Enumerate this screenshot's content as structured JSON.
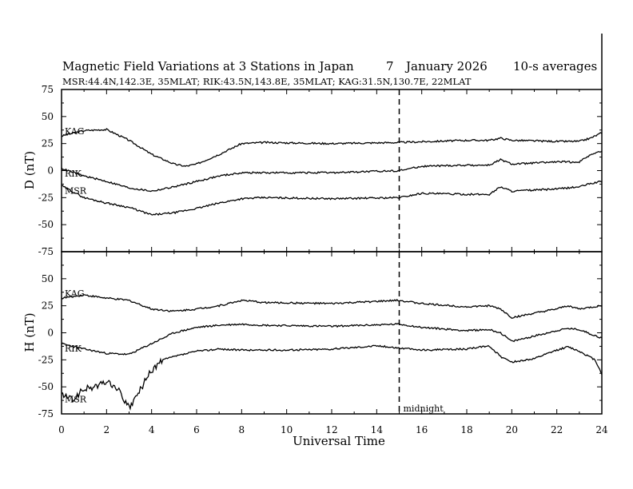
{
  "chart_data": {
    "type": "line",
    "title": "Magnetic Field Variations at 3 Stations in Japan",
    "day": "7",
    "month_year": "January  2026",
    "averaging": "10-s averages",
    "stations_line": "MSR:44.4N,142.3E, 35MLAT;  RIK:43.5N,143.8E, 35MLAT;  KAG:31.5N,130.7E, 22MLAT",
    "xlabel": "Universal Time",
    "xlim": [
      0,
      24
    ],
    "x_ticks": [
      "0",
      "2",
      "4",
      "6",
      "8",
      "10",
      "12",
      "14",
      "16",
      "18",
      "20",
      "22",
      "24"
    ],
    "midnight_label": "midnight",
    "midnight_ut": 15,
    "panels": [
      {
        "ylabel": "D (nT)",
        "ylim": [
          -75,
          75
        ],
        "y_ticks": [
          "75",
          "50",
          "25",
          "0",
          "-25",
          "-50",
          "-75"
        ],
        "series": [
          {
            "name": "KAG",
            "points": [
              [
                0,
                32
              ],
              [
                1,
                37
              ],
              [
                2,
                38
              ],
              [
                3,
                28
              ],
              [
                4,
                15
              ],
              [
                5,
                6
              ],
              [
                5.5,
                4
              ],
              [
                6,
                6
              ],
              [
                7,
                15
              ],
              [
                8,
                25
              ],
              [
                9,
                26
              ],
              [
                12,
                25
              ],
              [
                15,
                26
              ],
              [
                18,
                28
              ],
              [
                19,
                28
              ],
              [
                19.5,
                30
              ],
              [
                20,
                28
              ],
              [
                22,
                27
              ],
              [
                23,
                27
              ],
              [
                23.5,
                30
              ],
              [
                24,
                35
              ]
            ]
          },
          {
            "name": "RIK",
            "points": [
              [
                0,
                2
              ],
              [
                1,
                -5
              ],
              [
                2,
                -10
              ],
              [
                3,
                -16
              ],
              [
                4,
                -19
              ],
              [
                5,
                -15
              ],
              [
                6,
                -10
              ],
              [
                7,
                -5
              ],
              [
                8,
                -2
              ],
              [
                9,
                -2
              ],
              [
                12,
                -2
              ],
              [
                15,
                0
              ],
              [
                16,
                4
              ],
              [
                18,
                5
              ],
              [
                19,
                5
              ],
              [
                19.5,
                10
              ],
              [
                20,
                6
              ],
              [
                22,
                8
              ],
              [
                23,
                8
              ],
              [
                23.5,
                15
              ],
              [
                24,
                18
              ]
            ]
          },
          {
            "name": "MSR",
            "points": [
              [
                0,
                -14
              ],
              [
                1,
                -25
              ],
              [
                2,
                -30
              ],
              [
                3,
                -34
              ],
              [
                4,
                -41
              ],
              [
                5,
                -39
              ],
              [
                6,
                -35
              ],
              [
                7,
                -30
              ],
              [
                8,
                -26
              ],
              [
                9,
                -25
              ],
              [
                12,
                -26
              ],
              [
                15,
                -25
              ],
              [
                16,
                -21
              ],
              [
                18,
                -22
              ],
              [
                19,
                -22
              ],
              [
                19.5,
                -15
              ],
              [
                20,
                -19
              ],
              [
                22,
                -17
              ],
              [
                23,
                -15
              ],
              [
                23.5,
                -12
              ],
              [
                24,
                -10
              ]
            ]
          }
        ]
      },
      {
        "ylabel": "H (nT)",
        "ylim": [
          -75,
          75
        ],
        "y_ticks": [
          "75",
          "50",
          "25",
          "0",
          "-25",
          "-50",
          "-75"
        ],
        "series": [
          {
            "name": "KAG",
            "points": [
              [
                0,
                32
              ],
              [
                1,
                35
              ],
              [
                2,
                32
              ],
              [
                3,
                30
              ],
              [
                4,
                22
              ],
              [
                5,
                20
              ],
              [
                6,
                22
              ],
              [
                7,
                25
              ],
              [
                8,
                30
              ],
              [
                9,
                28
              ],
              [
                12,
                27
              ],
              [
                15,
                30
              ],
              [
                16,
                27
              ],
              [
                18,
                24
              ],
              [
                19,
                25
              ],
              [
                19.5,
                22
              ],
              [
                20,
                14
              ],
              [
                21,
                18
              ],
              [
                22,
                22
              ],
              [
                22.5,
                25
              ],
              [
                23,
                22
              ],
              [
                24,
                25
              ]
            ]
          },
          {
            "name": "RIK",
            "points": [
              [
                0,
                -10
              ],
              [
                1,
                -15
              ],
              [
                2,
                -19
              ],
              [
                3,
                -20
              ],
              [
                4,
                -10
              ],
              [
                5,
                0
              ],
              [
                6,
                5
              ],
              [
                7,
                7
              ],
              [
                8,
                8
              ],
              [
                9,
                7
              ],
              [
                12,
                6
              ],
              [
                15,
                8
              ],
              [
                16,
                5
              ],
              [
                18,
                2
              ],
              [
                19,
                3
              ],
              [
                19.5,
                0
              ],
              [
                20,
                -8
              ],
              [
                21,
                -3
              ],
              [
                22,
                2
              ],
              [
                22.5,
                4
              ],
              [
                23,
                3
              ],
              [
                24,
                -5
              ]
            ]
          },
          {
            "name": "MSR",
            "points": [
              [
                0,
                -57
              ],
              [
                0.5,
                -62
              ],
              [
                1,
                -52
              ],
              [
                1.5,
                -50
              ],
              [
                2,
                -45
              ],
              [
                2.5,
                -52
              ],
              [
                3,
                -70
              ],
              [
                3.3,
                -60
              ],
              [
                3.7,
                -45
              ],
              [
                4,
                -35
              ],
              [
                4.5,
                -25
              ],
              [
                5,
                -22
              ],
              [
                6,
                -17
              ],
              [
                7,
                -15
              ],
              [
                8,
                -16
              ],
              [
                10,
                -16
              ],
              [
                12,
                -15
              ],
              [
                14,
                -12
              ],
              [
                15,
                -14
              ],
              [
                16,
                -16
              ],
              [
                18,
                -15
              ],
              [
                19,
                -12
              ],
              [
                19.5,
                -22
              ],
              [
                20,
                -27
              ],
              [
                21,
                -24
              ],
              [
                22,
                -16
              ],
              [
                22.5,
                -13
              ],
              [
                23,
                -17
              ],
              [
                23.7,
                -25
              ],
              [
                24,
                -38
              ]
            ]
          }
        ]
      }
    ]
  }
}
